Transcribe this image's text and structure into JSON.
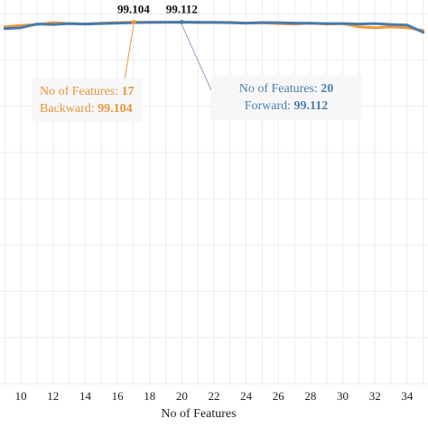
{
  "chart_data": {
    "type": "line",
    "xlabel": "No of Features",
    "ylabel": "",
    "title": "",
    "x_ticks": [
      10,
      12,
      14,
      16,
      18,
      20,
      22,
      24,
      26,
      28,
      30,
      32,
      34
    ],
    "xlim": [
      8.7,
      35.3
    ],
    "ylim": [
      60,
      101.5
    ],
    "grid": true,
    "series": [
      {
        "name": "Backward",
        "color": "#f0973b",
        "x": [
          9,
          10,
          11,
          12,
          13,
          14,
          15,
          16,
          17,
          18,
          19,
          20,
          21,
          22,
          23,
          24,
          25,
          26,
          27,
          28,
          29,
          30,
          31,
          32,
          33,
          34,
          35
        ],
        "y": [
          98.6,
          98.75,
          98.85,
          99.05,
          98.95,
          98.9,
          99.0,
          99.05,
          99.104,
          99.08,
          99.09,
          99.1,
          99.05,
          99.08,
          99.09,
          99.0,
          99.05,
          98.95,
          98.9,
          99.0,
          98.9,
          98.95,
          98.6,
          98.5,
          98.6,
          98.5,
          98.2
        ]
      },
      {
        "name": "Forward",
        "color": "#4a7bab",
        "x": [
          9,
          10,
          11,
          12,
          13,
          14,
          15,
          16,
          17,
          18,
          19,
          20,
          21,
          22,
          23,
          24,
          25,
          26,
          27,
          28,
          29,
          30,
          31,
          32,
          33,
          34,
          35
        ],
        "y": [
          98.4,
          98.5,
          98.9,
          98.85,
          98.95,
          98.9,
          98.95,
          99.0,
          99.05,
          99.09,
          99.1,
          99.112,
          99.1,
          99.07,
          99.05,
          99.0,
          99.06,
          99.05,
          99.0,
          98.98,
          98.95,
          98.95,
          98.9,
          98.95,
          98.85,
          98.8,
          98.0
        ]
      }
    ],
    "annotations": [
      {
        "x": 17,
        "label": "99.104"
      },
      {
        "x": 20,
        "label": "99.112"
      }
    ],
    "tooltips": {
      "backward": {
        "features_label": "No of Features:",
        "features_value": "17",
        "metric_label": "Backward:",
        "metric_value": "99.104"
      },
      "forward": {
        "features_label": "No of Features:",
        "features_value": "20",
        "metric_label": "Forward:",
        "metric_value": "99.112"
      }
    }
  }
}
